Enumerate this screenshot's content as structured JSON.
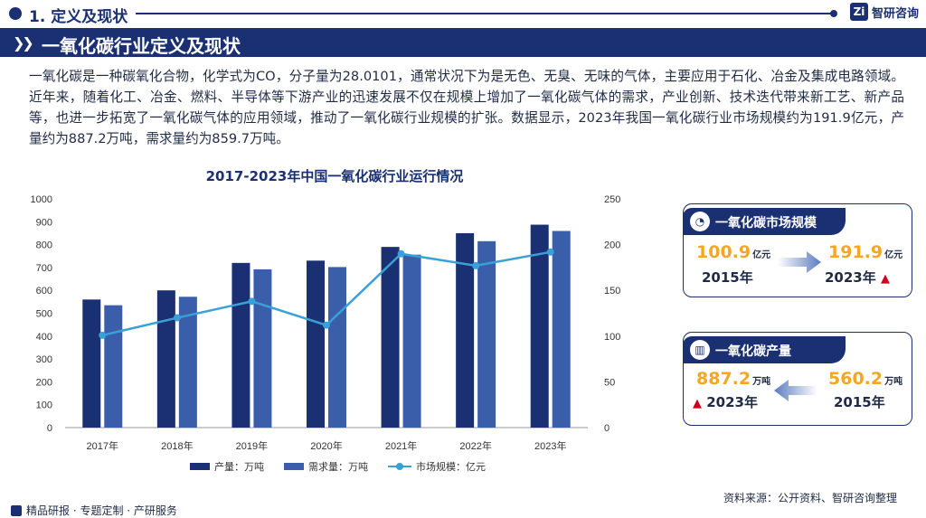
{
  "header": {
    "section": "1. 定义及现状",
    "brand": "智研咨询",
    "logo_mark": "Zi"
  },
  "banner": {
    "title": "一氧化碳行业定义及现状"
  },
  "paragraph": "一氧化碳是一种碳氧化合物，化学式为CO，分子量为28.0101，通常状况下为是无色、无臭、无味的气体，主要应用于石化、冶金及集成电路领域。近年来，随着化工、冶金、燃料、半导体等下游产业的迅速发展不仅在规模上增加了一氧化碳气体的需求，产业创新、技术迭代带来新工艺、新产品等，也进一步拓宽了一氧化碳气体的应用领域，推动了一氧化碳行业规模的扩张。数据显示，2023年我国一氧化碳行业市场规模约为191.9亿元，产量约为887.2万吨，需求量约为859.7万吨。",
  "chart_data": {
    "type": "bar",
    "title": "2017-2023年中国一氧化碳行业运行情况",
    "categories": [
      "2017年",
      "2018年",
      "2019年",
      "2020年",
      "2021年",
      "2022年",
      "2023年"
    ],
    "series": [
      {
        "name": "产量：万吨",
        "type": "bar",
        "axis": "left",
        "color": "#1a3072",
        "values": [
          560,
          600,
          720,
          730,
          790,
          850,
          887.2
        ]
      },
      {
        "name": "需求量：万吨",
        "type": "bar",
        "axis": "left",
        "color": "#3b5eab",
        "values": [
          535,
          572,
          692,
          702,
          756,
          815,
          859.7
        ]
      },
      {
        "name": "市场规模：亿元",
        "type": "line",
        "axis": "right",
        "color": "#3aa0d8",
        "values": [
          100.9,
          120,
          138,
          112,
          190,
          177,
          191.9
        ]
      }
    ],
    "ylim": [
      0,
      1000
    ],
    "y_ticks": [
      0,
      100,
      200,
      300,
      400,
      500,
      600,
      700,
      800,
      900,
      1000
    ],
    "y2lim": [
      0,
      250
    ],
    "y2_ticks": [
      0,
      50,
      100,
      150,
      200,
      250
    ],
    "grid": false,
    "legend_position": "bottom"
  },
  "cards": [
    {
      "title": "一氧化碳市场规模",
      "icon": "pie-chart-icon",
      "left_value": "100.9",
      "left_unit": "亿元",
      "left_year": "2015年",
      "right_value": "191.9",
      "right_unit": "亿元",
      "right_year": "2023年",
      "trend": "up"
    },
    {
      "title": "一氧化碳产量",
      "icon": "bar-chart-icon",
      "left_value": "887.2",
      "left_unit": "万吨",
      "left_year": "2023年",
      "right_value": "560.2",
      "right_unit": "万吨",
      "right_year": "2015年",
      "trend": "up"
    }
  ],
  "footer": {
    "left": "精品研报 · 专题定制 · 产研服务",
    "source": "资料来源：公开资料、智研咨询整理"
  },
  "colors": {
    "primary": "#1a3072",
    "accent": "#f5a623",
    "up": "#d0021b"
  }
}
